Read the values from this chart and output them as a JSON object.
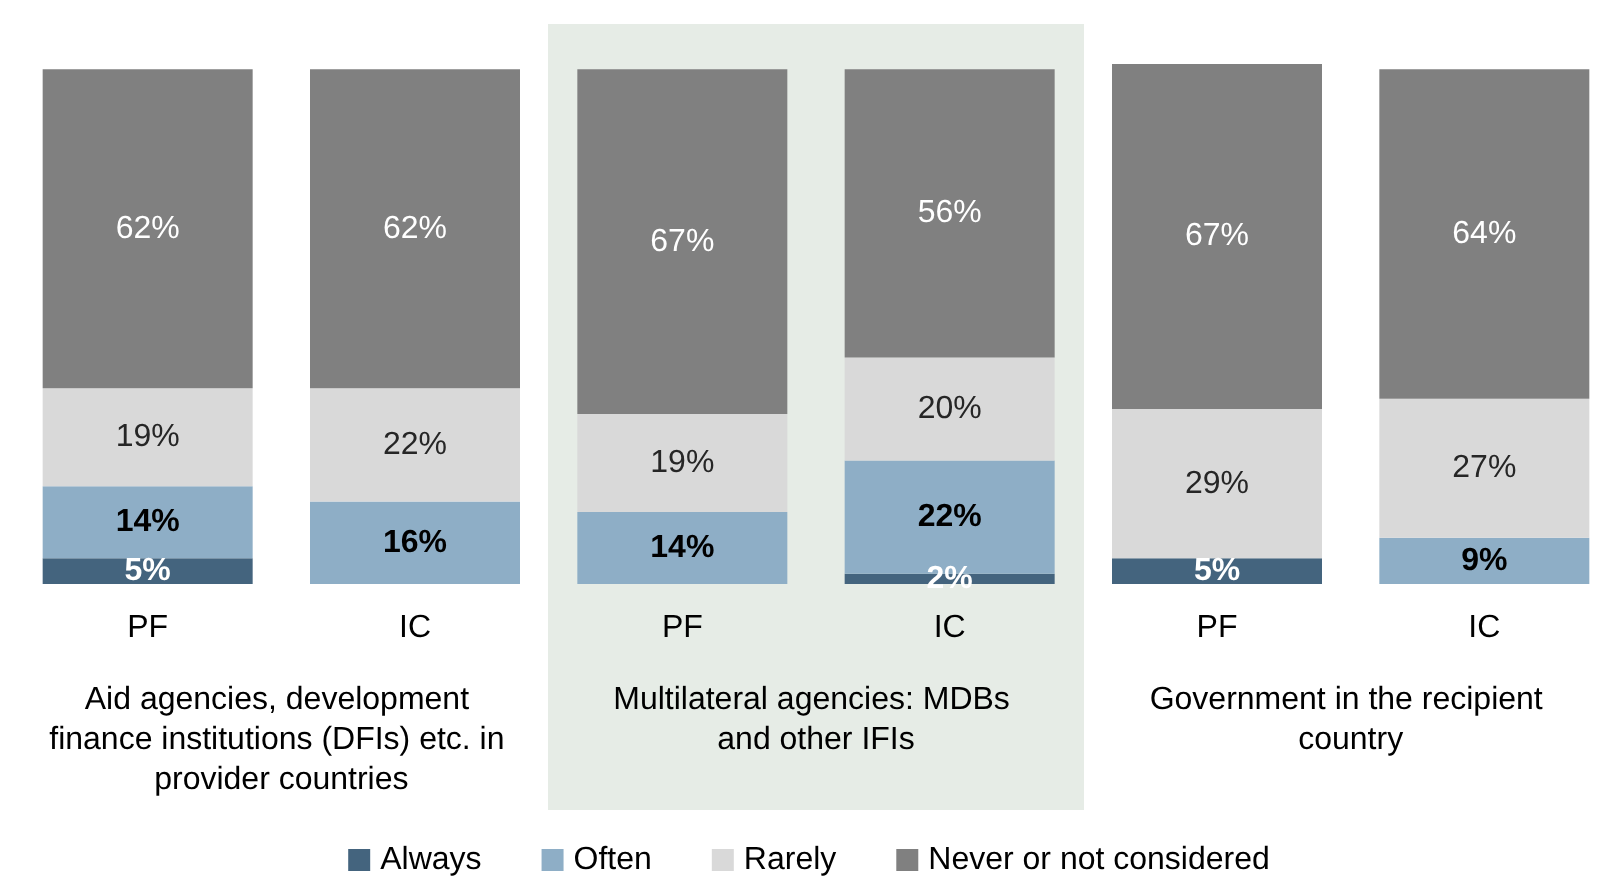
{
  "chart_data": {
    "type": "bar",
    "stacked": true,
    "legend": "bottom",
    "categories": [
      "PF",
      "IC",
      "PF",
      "IC",
      "PF",
      "IC"
    ],
    "series": [
      {
        "name": "Always",
        "color": "#44647e",
        "values": [
          5,
          null,
          null,
          2,
          5,
          null
        ],
        "value_labels": [
          "5%",
          null,
          null,
          "2%",
          "5%",
          null
        ]
      },
      {
        "name": "Often",
        "color": "#8eaec6",
        "values": [
          14,
          16,
          14,
          22,
          null,
          9
        ],
        "value_labels": [
          "14%",
          "16%",
          "14%",
          "22%",
          null,
          "9%"
        ]
      },
      {
        "name": "Rarely",
        "color": "#d9d9d9",
        "values": [
          19,
          22,
          19,
          20,
          29,
          27
        ],
        "value_labels": [
          "19%",
          "22%",
          "19%",
          "20%",
          "29%",
          "27%"
        ]
      },
      {
        "name": "Never or not considered",
        "color": "#808080",
        "values": [
          62,
          62,
          67,
          56,
          67,
          64
        ],
        "value_labels": [
          "62%",
          "62%",
          "67%",
          "56%",
          "67%",
          "64%"
        ]
      }
    ],
    "annotations": [
      "Aid agencies, development finance institutions (DFIs) etc. in provider countries",
      "Multilateral agencies: MDBs and other IFIs",
      "Government in the recipient country"
    ]
  }
}
